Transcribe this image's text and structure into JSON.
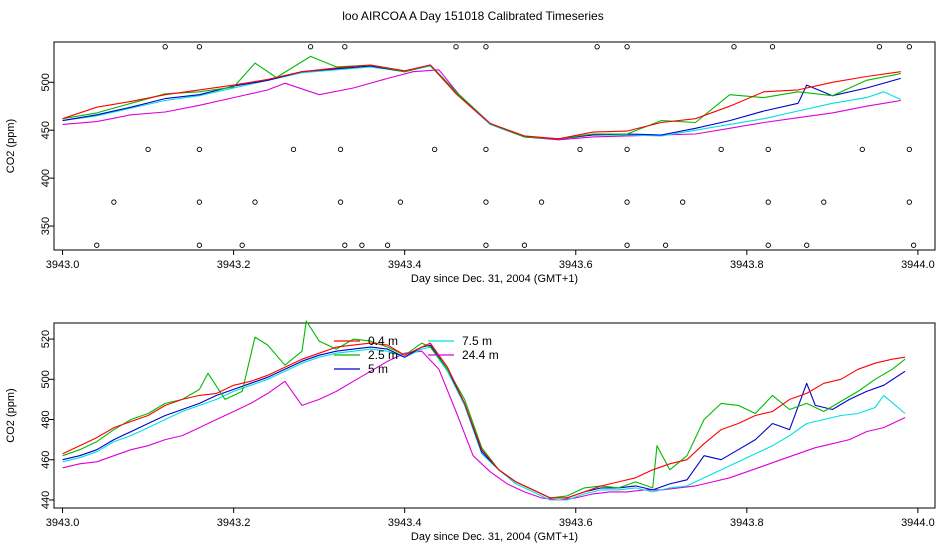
{
  "title": "loo AIRCOA A  Day 151018  Calibrated Timeseries",
  "colors": {
    "0.4 m": "#ff0000",
    "2.5 m": "#00bb00",
    "5 m": "#0000cc",
    "7.5 m": "#00e0e0",
    "24.4 m": "#dd00dd"
  },
  "chart_data": [
    {
      "type": "line",
      "title": "",
      "xlabel": "Day since Dec. 31, 2004 (GMT+1)",
      "ylabel": "CO2 (ppm)",
      "xlim": [
        3942.99,
        3944.02
      ],
      "ylim": [
        325,
        542
      ],
      "xticks": [
        3943.0,
        3943.2,
        3943.4,
        3943.6,
        3943.8,
        3944.0
      ],
      "xtick_labels": [
        "3943.0",
        "3943.2",
        "3943.4",
        "3943.6",
        "3943.8",
        "3944.0"
      ],
      "yticks": [
        350,
        400,
        450,
        500
      ],
      "ytick_labels": [
        "350",
        "400",
        "450",
        "500"
      ],
      "series": [
        {
          "name": "0.4 m",
          "x": [
            3943.0,
            3943.04,
            3943.08,
            3943.12,
            3943.16,
            3943.2,
            3943.24,
            3943.28,
            3943.32,
            3943.36,
            3943.4,
            3943.43,
            3943.46,
            3943.5,
            3943.54,
            3943.58,
            3943.62,
            3943.66,
            3943.7,
            3943.74,
            3943.78,
            3943.82,
            3943.86,
            3943.9,
            3943.94,
            3943.98
          ],
          "y": [
            462,
            474,
            480,
            487,
            492,
            497,
            503,
            511,
            515,
            518,
            512,
            518,
            488,
            457,
            444,
            441,
            448,
            449,
            458,
            462,
            475,
            490,
            492,
            500,
            506,
            511
          ]
        },
        {
          "name": "2.5 m",
          "x": [
            3943.0,
            3943.04,
            3943.08,
            3943.12,
            3943.16,
            3943.2,
            3943.225,
            3943.25,
            3943.29,
            3943.32,
            3943.36,
            3943.4,
            3943.43,
            3943.46,
            3943.5,
            3943.54,
            3943.58,
            3943.62,
            3943.66,
            3943.7,
            3943.74,
            3943.78,
            3943.82,
            3943.86,
            3943.9,
            3943.94,
            3943.98
          ],
          "y": [
            462,
            468,
            478,
            488,
            490,
            495,
            520,
            505,
            527,
            516,
            518,
            511,
            518,
            490,
            457,
            443,
            441,
            446,
            446,
            460,
            458,
            487,
            484,
            490,
            486,
            502,
            509
          ]
        },
        {
          "name": "5 m",
          "x": [
            3943.0,
            3943.04,
            3943.08,
            3943.12,
            3943.16,
            3943.2,
            3943.24,
            3943.28,
            3943.32,
            3943.36,
            3943.4,
            3943.43,
            3943.46,
            3943.5,
            3943.54,
            3943.58,
            3943.62,
            3943.66,
            3943.7,
            3943.74,
            3943.78,
            3943.82,
            3943.86,
            3943.87,
            3943.9,
            3943.94,
            3943.98
          ],
          "y": [
            460,
            466,
            474,
            483,
            487,
            496,
            502,
            511,
            514,
            517,
            511,
            518,
            490,
            457,
            443,
            441,
            445,
            446,
            445,
            452,
            460,
            470,
            478,
            497,
            486,
            494,
            504
          ]
        },
        {
          "name": "7.5 m",
          "x": [
            3943.0,
            3943.04,
            3943.08,
            3943.12,
            3943.16,
            3943.2,
            3943.24,
            3943.28,
            3943.32,
            3943.36,
            3943.4,
            3943.43,
            3943.46,
            3943.5,
            3943.54,
            3943.58,
            3943.62,
            3943.66,
            3943.7,
            3943.74,
            3943.78,
            3943.82,
            3943.86,
            3943.9,
            3943.94,
            3943.96,
            3943.98
          ],
          "y": [
            460,
            465,
            473,
            481,
            486,
            494,
            502,
            510,
            513,
            516,
            511,
            517,
            489,
            456,
            443,
            441,
            445,
            445,
            444,
            450,
            456,
            462,
            470,
            478,
            484,
            490,
            482
          ]
        },
        {
          "name": "24.4 m",
          "x": [
            3943.0,
            3943.04,
            3943.08,
            3943.12,
            3943.16,
            3943.2,
            3943.24,
            3943.26,
            3943.3,
            3943.34,
            3943.38,
            3943.41,
            3943.44,
            3943.47,
            3943.5,
            3943.54,
            3943.58,
            3943.62,
            3943.66,
            3943.7,
            3943.74,
            3943.78,
            3943.82,
            3943.86,
            3943.9,
            3943.94,
            3943.98
          ],
          "y": [
            456,
            459,
            466,
            469,
            476,
            484,
            492,
            499,
            487,
            494,
            504,
            511,
            513,
            480,
            456,
            443,
            440,
            443,
            444,
            445,
            446,
            452,
            458,
            463,
            468,
            475,
            481
          ]
        }
      ],
      "markers": {
        "x": [
          3943.04,
          3943.06,
          3943.1,
          3943.12,
          3943.16,
          3943.16,
          3943.16,
          3943.16,
          3943.21,
          3943.225,
          3943.27,
          3943.29,
          3943.325,
          3943.325,
          3943.33,
          3943.33,
          3943.35,
          3943.38,
          3943.395,
          3943.435,
          3943.46,
          3943.495,
          3943.495,
          3943.495,
          3943.495,
          3943.54,
          3943.56,
          3943.605,
          3943.625,
          3943.66,
          3943.66,
          3943.66,
          3943.66,
          3943.705,
          3943.725,
          3943.77,
          3943.785,
          3943.825,
          3943.825,
          3943.825,
          3943.83,
          3943.87,
          3943.89,
          3943.935,
          3943.955,
          3943.99,
          3943.99,
          3943.99,
          3943.995
        ],
        "y": [
          330,
          375,
          430,
          537,
          375,
          430,
          537,
          330,
          330,
          375,
          430,
          537,
          375,
          430,
          537,
          330,
          330,
          330,
          375,
          430,
          537,
          330,
          375,
          430,
          537,
          330,
          375,
          430,
          537,
          375,
          430,
          537,
          330,
          330,
          375,
          430,
          537,
          330,
          375,
          430,
          537,
          330,
          375,
          430,
          537,
          375,
          430,
          537,
          330
        ]
      }
    },
    {
      "type": "line",
      "title": "",
      "xlabel": "Day since Dec. 31, 2004 (GMT+1)",
      "ylabel": "CO2 (ppm)",
      "xlim": [
        3942.99,
        3944.02
      ],
      "ylim": [
        436,
        528
      ],
      "xticks": [
        3943.0,
        3943.2,
        3943.4,
        3943.6,
        3943.8,
        3944.0
      ],
      "xtick_labels": [
        "3943.0",
        "3943.2",
        "3943.4",
        "3943.6",
        "3943.8",
        "3944.0"
      ],
      "yticks": [
        440,
        460,
        480,
        500,
        520
      ],
      "ytick_labels": [
        "440",
        "460",
        "480",
        "500",
        "520"
      ],
      "legend": {
        "position": "top-center",
        "entries": [
          "0.4 m",
          "2.5 m",
          "5 m",
          "7.5 m",
          "24.4 m"
        ]
      },
      "series": [
        {
          "name": "0.4 m",
          "x": [
            3943.0,
            3943.02,
            3943.04,
            3943.06,
            3943.08,
            3943.1,
            3943.12,
            3943.14,
            3943.16,
            3943.18,
            3943.2,
            3943.22,
            3943.24,
            3943.26,
            3943.28,
            3943.3,
            3943.32,
            3943.34,
            3943.36,
            3943.38,
            3943.4,
            3943.42,
            3943.43,
            3943.45,
            3943.47,
            3943.49,
            3943.51,
            3943.53,
            3943.55,
            3943.57,
            3943.59,
            3943.61,
            3943.63,
            3943.65,
            3943.67,
            3943.69,
            3943.71,
            3943.73,
            3943.75,
            3943.77,
            3943.79,
            3943.81,
            3943.83,
            3943.85,
            3943.87,
            3943.89,
            3943.91,
            3943.93,
            3943.95,
            3943.97,
            3943.985
          ],
          "y": [
            463,
            467,
            471,
            476,
            479,
            482,
            487,
            490,
            492,
            493,
            497,
            499,
            502,
            506,
            510,
            513,
            516,
            517,
            518,
            517,
            512,
            516,
            518,
            506,
            488,
            465,
            455,
            449,
            445,
            441,
            441,
            444,
            447,
            449,
            451,
            455,
            458,
            460,
            468,
            475,
            478,
            482,
            484,
            490,
            493,
            498,
            500,
            505,
            508,
            510,
            511
          ]
        },
        {
          "name": "2.5 m",
          "x": [
            3943.0,
            3943.02,
            3943.04,
            3943.06,
            3943.08,
            3943.1,
            3943.12,
            3943.14,
            3943.16,
            3943.17,
            3943.19,
            3943.21,
            3943.225,
            3943.24,
            3943.26,
            3943.28,
            3943.285,
            3943.3,
            3943.32,
            3943.34,
            3943.36,
            3943.38,
            3943.4,
            3943.42,
            3943.43,
            3943.45,
            3943.47,
            3943.49,
            3943.51,
            3943.53,
            3943.55,
            3943.57,
            3943.59,
            3943.61,
            3943.63,
            3943.65,
            3943.67,
            3943.69,
            3943.695,
            3943.71,
            3943.73,
            3943.75,
            3943.77,
            3943.79,
            3943.81,
            3943.83,
            3943.85,
            3943.87,
            3943.89,
            3943.91,
            3943.93,
            3943.95,
            3943.97,
            3943.985
          ],
          "y": [
            462,
            465,
            469,
            475,
            480,
            483,
            488,
            490,
            495,
            503,
            490,
            494,
            521,
            517,
            507,
            514,
            529,
            519,
            515,
            520,
            519,
            516,
            512,
            518,
            516,
            505,
            490,
            466,
            455,
            449,
            445,
            441,
            442,
            446,
            447,
            446,
            449,
            446,
            467,
            455,
            462,
            480,
            488,
            487,
            483,
            492,
            485,
            488,
            484,
            489,
            494,
            500,
            505,
            510
          ]
        },
        {
          "name": "5 m",
          "x": [
            3943.0,
            3943.02,
            3943.04,
            3943.06,
            3943.08,
            3943.1,
            3943.12,
            3943.14,
            3943.16,
            3943.18,
            3943.2,
            3943.22,
            3943.24,
            3943.26,
            3943.28,
            3943.3,
            3943.32,
            3943.34,
            3943.36,
            3943.38,
            3943.4,
            3943.42,
            3943.43,
            3943.45,
            3943.47,
            3943.49,
            3943.51,
            3943.53,
            3943.55,
            3943.57,
            3943.59,
            3943.61,
            3943.63,
            3943.65,
            3943.67,
            3943.69,
            3943.71,
            3943.73,
            3943.75,
            3943.77,
            3943.79,
            3943.81,
            3943.83,
            3943.85,
            3943.87,
            3943.88,
            3943.9,
            3943.92,
            3943.94,
            3943.96,
            3943.985
          ],
          "y": [
            460,
            462,
            465,
            470,
            474,
            478,
            482,
            485,
            488,
            492,
            495,
            498,
            501,
            505,
            509,
            512,
            514,
            515,
            516,
            515,
            511,
            516,
            517,
            505,
            488,
            464,
            455,
            449,
            445,
            441,
            441,
            444,
            446,
            446,
            447,
            445,
            448,
            450,
            462,
            460,
            465,
            470,
            478,
            475,
            498,
            487,
            485,
            490,
            494,
            497,
            504
          ]
        },
        {
          "name": "7.5 m",
          "x": [
            3943.0,
            3943.02,
            3943.04,
            3943.06,
            3943.08,
            3943.1,
            3943.12,
            3943.14,
            3943.16,
            3943.18,
            3943.2,
            3943.22,
            3943.24,
            3943.26,
            3943.28,
            3943.3,
            3943.32,
            3943.34,
            3943.36,
            3943.38,
            3943.4,
            3943.42,
            3943.43,
            3943.45,
            3943.47,
            3943.49,
            3943.51,
            3943.53,
            3943.55,
            3943.57,
            3943.59,
            3943.61,
            3943.63,
            3943.65,
            3943.67,
            3943.69,
            3943.71,
            3943.73,
            3943.75,
            3943.77,
            3943.79,
            3943.81,
            3943.83,
            3943.85,
            3943.87,
            3943.89,
            3943.91,
            3943.93,
            3943.95,
            3943.96,
            3943.985
          ],
          "y": [
            459,
            461,
            464,
            469,
            472,
            476,
            480,
            484,
            487,
            490,
            494,
            497,
            500,
            504,
            508,
            511,
            513,
            514,
            515,
            514,
            511,
            515,
            516,
            504,
            487,
            463,
            455,
            448,
            444,
            440,
            440,
            443,
            445,
            445,
            446,
            444,
            446,
            447,
            451,
            455,
            459,
            463,
            467,
            472,
            478,
            480,
            482,
            483,
            486,
            492,
            483
          ]
        },
        {
          "name": "24.4 m",
          "x": [
            3943.0,
            3943.02,
            3943.04,
            3943.06,
            3943.08,
            3943.1,
            3943.12,
            3943.14,
            3943.16,
            3943.18,
            3943.2,
            3943.22,
            3943.24,
            3943.26,
            3943.28,
            3943.3,
            3943.32,
            3943.34,
            3943.36,
            3943.38,
            3943.4,
            3943.42,
            3943.44,
            3943.46,
            3943.48,
            3943.5,
            3943.52,
            3943.54,
            3943.56,
            3943.58,
            3943.6,
            3943.62,
            3943.64,
            3943.66,
            3943.68,
            3943.7,
            3943.72,
            3943.74,
            3943.76,
            3943.78,
            3943.8,
            3943.82,
            3943.84,
            3943.86,
            3943.88,
            3943.9,
            3943.92,
            3943.94,
            3943.96,
            3943.985
          ],
          "y": [
            456,
            458,
            459,
            462,
            465,
            467,
            470,
            472,
            476,
            480,
            484,
            488,
            493,
            499,
            487,
            490,
            494,
            499,
            504,
            509,
            513,
            514,
            505,
            484,
            462,
            454,
            448,
            444,
            441,
            440,
            441,
            443,
            444,
            444,
            445,
            445,
            446,
            447,
            449,
            451,
            454,
            457,
            460,
            463,
            466,
            468,
            470,
            474,
            476,
            481
          ]
        }
      ]
    }
  ]
}
